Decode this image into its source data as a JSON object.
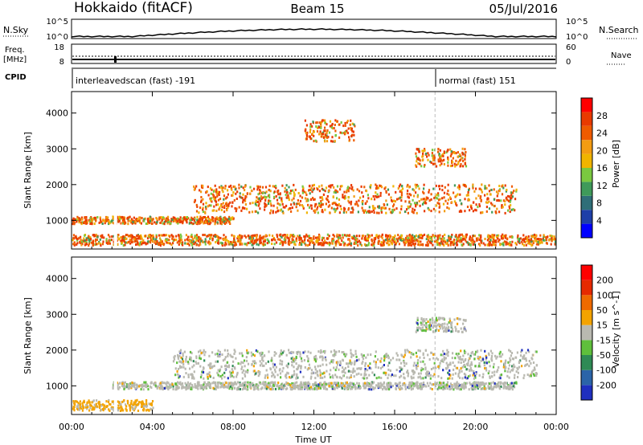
{
  "header": {
    "title": "Hokkaido (fitACF)",
    "beam": "Beam 15",
    "date": "05/Jul/2016"
  },
  "top_panels": {
    "nsky": {
      "label": "N.Sky",
      "ticks": [
        "10^5",
        "10^0"
      ]
    },
    "nsearch": {
      "label": "N.Search",
      "ticks": [
        "10^5",
        "10^0"
      ]
    },
    "freq": {
      "label_top": "Freq.",
      "label_bottom": "[MHz]",
      "ticks": [
        "18",
        "8"
      ]
    },
    "nave": {
      "label": "Nave",
      "ticks": [
        "60",
        "0"
      ]
    },
    "cpid": {
      "label": "CPID",
      "segments": [
        {
          "name": "interleavedscan (fast) -191",
          "start_hour": 0
        },
        {
          "name": "normal (fast) 151",
          "start_hour": 18
        }
      ]
    }
  },
  "chart_data": [
    {
      "type": "heatmap",
      "quantity": "Power",
      "ylabel": "Slant Range [km]",
      "ylim": [
        200,
        4600
      ],
      "yticks": [
        1000,
        2000,
        3000,
        4000
      ],
      "xlim_hours": [
        0,
        24
      ],
      "xtick_labels": [
        "00:00",
        "04:00",
        "08:00",
        "12:00",
        "16:00",
        "20:00",
        "00:00"
      ],
      "colorbar": {
        "label": "Power [dB]",
        "ticks": [
          "28",
          "24",
          "20",
          "16",
          "12",
          "8",
          "4"
        ],
        "colors": [
          "#0000ff",
          "#1e3fa8",
          "#2f6e78",
          "#3f9a5a",
          "#7ac840",
          "#f0b400",
          "#f39c12",
          "#ef5b00",
          "#e93a00",
          "#ff0000"
        ]
      },
      "echo_bands": [
        {
          "range_km": [
            900,
            1100
          ],
          "hours": [
            0,
            8
          ]
        },
        {
          "range_km": [
            300,
            600
          ],
          "hours": [
            0,
            24
          ]
        },
        {
          "range_km": [
            1200,
            2000
          ],
          "hours": [
            6,
            22
          ]
        },
        {
          "range_km": [
            2500,
            3000
          ],
          "hours": [
            17,
            19.5
          ]
        },
        {
          "range_km": [
            3200,
            3800
          ],
          "hours": [
            11.5,
            14
          ]
        }
      ]
    },
    {
      "type": "heatmap",
      "quantity": "Velocity",
      "ylabel": "Slant Range [km]",
      "xlabel": "Time UT",
      "ylim": [
        200,
        4600
      ],
      "yticks": [
        1000,
        2000,
        3000,
        4000
      ],
      "xlim_hours": [
        0,
        24
      ],
      "xtick_labels": [
        "00:00",
        "04:00",
        "08:00",
        "12:00",
        "16:00",
        "20:00",
        "00:00"
      ],
      "colorbar": {
        "label": "Velocity [m s^-1]",
        "ticks": [
          "200",
          "100",
          "50",
          "15",
          "-15",
          "-50",
          "-100",
          "-200"
        ],
        "colors": [
          "#1f2fbf",
          "#2b64a8",
          "#2f8a55",
          "#5fbf3c",
          "#b9b9b0",
          "#f3a300",
          "#ef6a00",
          "#e62a00",
          "#ff0000"
        ]
      },
      "echo_bands": [
        {
          "range_km": [
            300,
            600
          ],
          "hours": [
            0,
            4
          ],
          "note": "orange"
        },
        {
          "range_km": [
            900,
            1100
          ],
          "hours": [
            2,
            22
          ],
          "note": "grey"
        },
        {
          "range_km": [
            1200,
            2000
          ],
          "hours": [
            5,
            23
          ],
          "note": "grey"
        },
        {
          "range_km": [
            2500,
            2900
          ],
          "hours": [
            17,
            19.5
          ],
          "note": "grey"
        }
      ]
    }
  ]
}
